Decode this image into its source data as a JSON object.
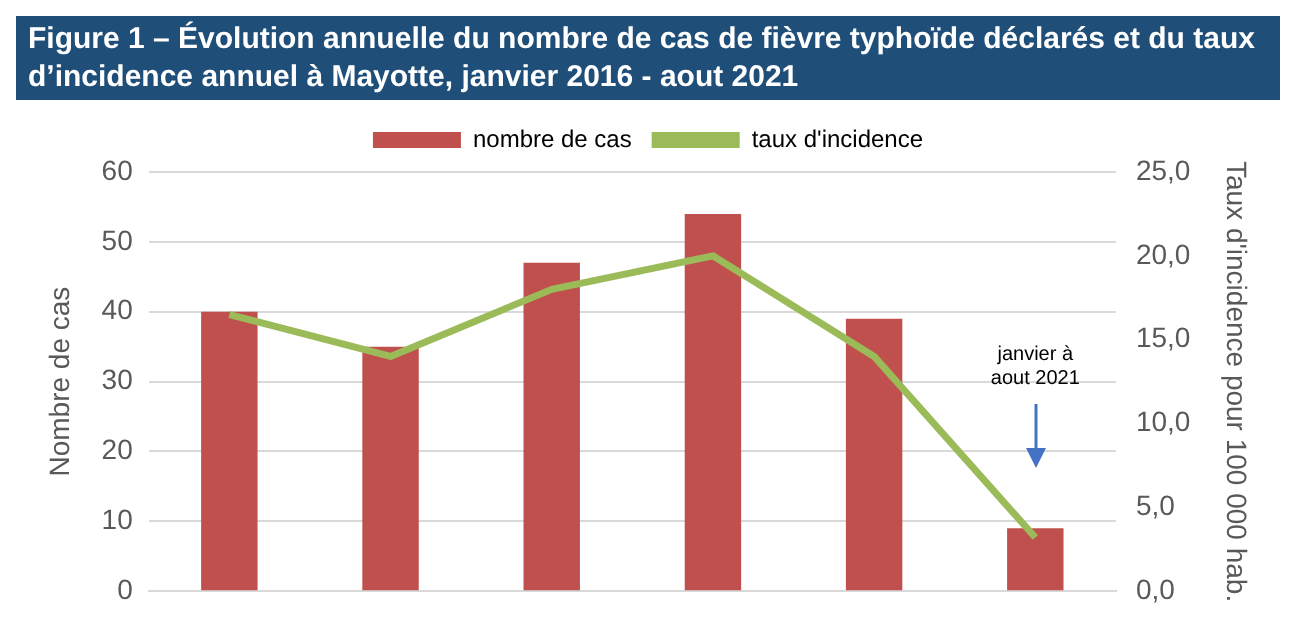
{
  "chart_data": {
    "type": "bar",
    "title": "Figure 1 – Évolution annuelle du nombre de cas de fièvre typhoïde déclarés et du taux d’incidence annuel à Mayotte, janvier 2016 - aout 2021",
    "ylabel": "Nombre de cas",
    "y2label": "Taux d'incidence pour 100 000 hab.",
    "categories": [
      null,
      null,
      null,
      null,
      null,
      null
    ],
    "series": [
      {
        "name": "nombre de cas",
        "color": "#c0504d",
        "values": [
          40,
          35,
          47,
          54,
          39,
          9
        ]
      },
      {
        "name": "taux d'incidence",
        "type": "line",
        "axis": "y2",
        "color": "#9bbb59",
        "values": [
          16.5,
          14.0,
          18.0,
          20.0,
          14.0,
          3.2
        ]
      }
    ],
    "ylim": [
      0,
      60
    ],
    "yticks": [
      0,
      10,
      20,
      30,
      40,
      50,
      60
    ],
    "y2lim": [
      0,
      25
    ],
    "y2ticks": [
      {
        "value": 0,
        "label": "0,0"
      },
      {
        "value": 5,
        "label": "5,0"
      },
      {
        "value": 10,
        "label": "10,0"
      },
      {
        "value": 15,
        "label": "15,0"
      },
      {
        "value": 20,
        "label": "20,0"
      },
      {
        "value": 25,
        "label": "25,0"
      }
    ],
    "annotations": [
      "janvier à aout 2021"
    ],
    "grid": "y",
    "legend": "top",
    "marker": "none",
    "line_style": "solid"
  }
}
